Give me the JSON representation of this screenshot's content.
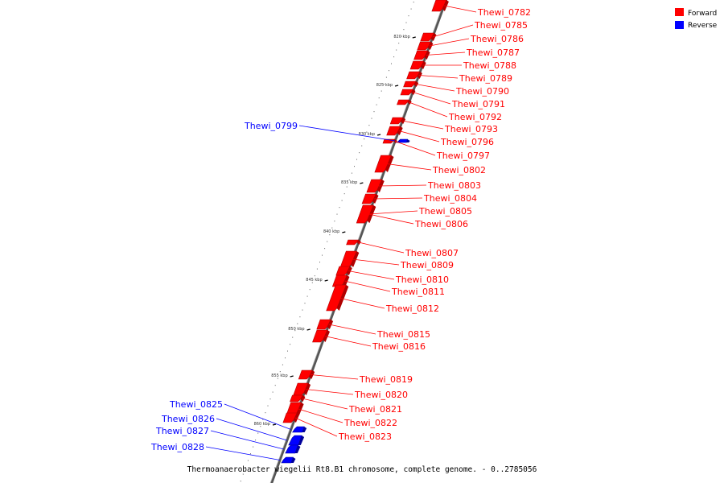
{
  "legend": {
    "forward": {
      "label": "Forward",
      "color": "#ff0000"
    },
    "reverse": {
      "label": "Reverse",
      "color": "#0000ff"
    }
  },
  "footer": "Thermoanaerobacter wiegelii Rt8.B1 chromosome, complete genome. - 0..2785056",
  "axis_ticks": [
    "820 kbp",
    "825 kbp",
    "830 kbp",
    "835 kbp",
    "840 kbp",
    "845 kbp",
    "850 kbp",
    "855 kbp",
    "860 kbp"
  ],
  "genes": [
    {
      "id": "Thewi_0782",
      "strand": "forward"
    },
    {
      "id": "Thewi_0785",
      "strand": "forward"
    },
    {
      "id": "Thewi_0786",
      "strand": "forward"
    },
    {
      "id": "Thewi_0787",
      "strand": "forward"
    },
    {
      "id": "Thewi_0788",
      "strand": "forward"
    },
    {
      "id": "Thewi_0789",
      "strand": "forward"
    },
    {
      "id": "Thewi_0790",
      "strand": "forward"
    },
    {
      "id": "Thewi_0791",
      "strand": "forward"
    },
    {
      "id": "Thewi_0792",
      "strand": "forward"
    },
    {
      "id": "Thewi_0793",
      "strand": "forward"
    },
    {
      "id": "Thewi_0796",
      "strand": "forward"
    },
    {
      "id": "Thewi_0797",
      "strand": "forward"
    },
    {
      "id": "Thewi_0799",
      "strand": "reverse"
    },
    {
      "id": "Thewi_0802",
      "strand": "forward"
    },
    {
      "id": "Thewi_0803",
      "strand": "forward"
    },
    {
      "id": "Thewi_0804",
      "strand": "forward"
    },
    {
      "id": "Thewi_0805",
      "strand": "forward"
    },
    {
      "id": "Thewi_0806",
      "strand": "forward"
    },
    {
      "id": "Thewi_0807",
      "strand": "forward"
    },
    {
      "id": "Thewi_0809",
      "strand": "forward"
    },
    {
      "id": "Thewi_0810",
      "strand": "forward"
    },
    {
      "id": "Thewi_0811",
      "strand": "forward"
    },
    {
      "id": "Thewi_0812",
      "strand": "forward"
    },
    {
      "id": "Thewi_0815",
      "strand": "forward"
    },
    {
      "id": "Thewi_0816",
      "strand": "forward"
    },
    {
      "id": "Thewi_0819",
      "strand": "forward"
    },
    {
      "id": "Thewi_0820",
      "strand": "forward"
    },
    {
      "id": "Thewi_0821",
      "strand": "forward"
    },
    {
      "id": "Thewi_0822",
      "strand": "forward"
    },
    {
      "id": "Thewi_0823",
      "strand": "forward"
    },
    {
      "id": "Thewi_0825",
      "strand": "reverse"
    },
    {
      "id": "Thewi_0826",
      "strand": "reverse"
    },
    {
      "id": "Thewi_0827",
      "strand": "reverse"
    },
    {
      "id": "Thewi_0828",
      "strand": "reverse"
    }
  ]
}
